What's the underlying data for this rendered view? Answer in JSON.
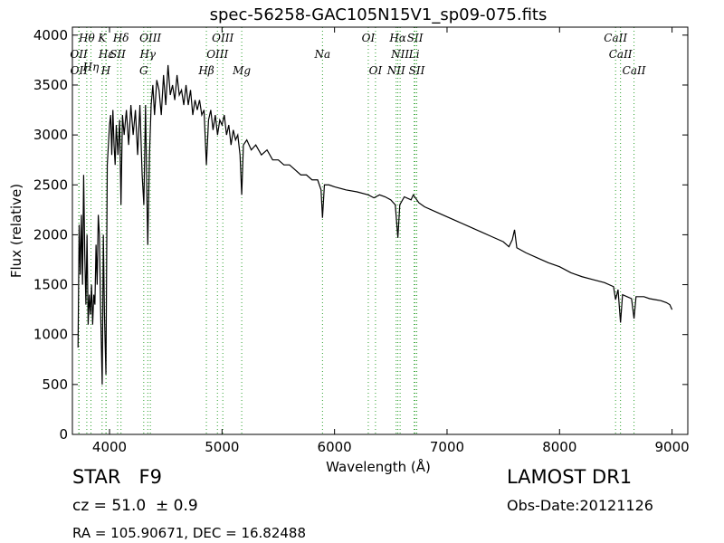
{
  "chart_data": {
    "type": "line",
    "title": "spec-56258-GAC105N15V1_sp09-075.fits",
    "x_label": "Wavelength (Å)",
    "y_label": "Flux (relative)",
    "annotations": {
      "class": "STAR   F9",
      "redshift": "cz = 51.0  ± 0.9",
      "coords": "RA = 105.90671, DEC = 16.82488",
      "survey": "LAMOST DR1",
      "obs_date": "Obs-Date:20121126"
    },
    "color": "#000000",
    "line_color": "#2ca02c",
    "xlim": [
      3670,
      9140
    ],
    "ylim": [
      0,
      4080
    ],
    "xticks": [
      4000,
      5000,
      6000,
      7000,
      8000,
      9000
    ],
    "yticks": [
      0,
      500,
      1000,
      1500,
      2000,
      2500,
      3000,
      3500,
      4000
    ],
    "x": [
      3720,
      3730,
      3740,
      3750,
      3760,
      3770,
      3780,
      3790,
      3800,
      3810,
      3820,
      3830,
      3840,
      3850,
      3860,
      3870,
      3880,
      3890,
      3900,
      3910,
      3920,
      3935,
      3945,
      3955,
      3968,
      3980,
      3990,
      4000,
      4010,
      4020,
      4030,
      4040,
      4050,
      4060,
      4075,
      4090,
      4102,
      4115,
      4130,
      4150,
      4170,
      4190,
      4210,
      4230,
      4250,
      4270,
      4290,
      4305,
      4320,
      4335,
      4340,
      4355,
      4370,
      4385,
      4400,
      4420,
      4440,
      4460,
      4480,
      4500,
      4520,
      4540,
      4560,
      4580,
      4600,
      4620,
      4640,
      4660,
      4680,
      4700,
      4720,
      4740,
      4760,
      4780,
      4800,
      4820,
      4840,
      4861,
      4880,
      4900,
      4920,
      4940,
      4960,
      4980,
      5000,
      5020,
      5040,
      5060,
      5080,
      5100,
      5120,
      5140,
      5160,
      5175,
      5190,
      5220,
      5260,
      5300,
      5350,
      5400,
      5450,
      5500,
      5550,
      5600,
      5650,
      5700,
      5750,
      5800,
      5850,
      5880,
      5893,
      5910,
      5950,
      6000,
      6100,
      6200,
      6300,
      6350,
      6400,
      6450,
      6500,
      6540,
      6563,
      6580,
      6620,
      6680,
      6700,
      6750,
      6800,
      6900,
      7000,
      7100,
      7200,
      7300,
      7400,
      7500,
      7550,
      7580,
      7600,
      7620,
      7700,
      7800,
      7900,
      8000,
      8100,
      8200,
      8300,
      8400,
      8480,
      8498,
      8520,
      8542,
      8560,
      8600,
      8640,
      8662,
      8680,
      8750,
      8800,
      8850,
      8900,
      8950,
      8980,
      9000
    ],
    "values": [
      870,
      2100,
      1600,
      2200,
      1500,
      2600,
      1800,
      1300,
      2000,
      1100,
      1400,
      1200,
      1500,
      1100,
      1400,
      1300,
      1900,
      1500,
      2200,
      2000,
      1300,
      500,
      2000,
      1200,
      600,
      2700,
      2900,
      3100,
      3200,
      2800,
      3250,
      2900,
      2700,
      3100,
      2800,
      3150,
      2300,
      3200,
      3000,
      3250,
      2900,
      3300,
      3000,
      3250,
      2800,
      3300,
      2600,
      2300,
      3300,
      2200,
      1900,
      2800,
      3300,
      3500,
      3200,
      3550,
      3450,
      3200,
      3600,
      3300,
      3700,
      3400,
      3500,
      3350,
      3600,
      3400,
      3450,
      3300,
      3500,
      3300,
      3450,
      3200,
      3350,
      3250,
      3350,
      3200,
      3250,
      2700,
      3150,
      3250,
      3050,
      3200,
      3000,
      3150,
      3100,
      3200,
      3000,
      3100,
      2900,
      3050,
      2950,
      3000,
      2800,
      2400,
      2900,
      2950,
      2850,
      2900,
      2800,
      2850,
      2750,
      2750,
      2700,
      2700,
      2650,
      2600,
      2600,
      2550,
      2550,
      2450,
      2170,
      2500,
      2500,
      2480,
      2450,
      2430,
      2400,
      2370,
      2400,
      2380,
      2350,
      2300,
      1970,
      2300,
      2380,
      2350,
      2400,
      2320,
      2280,
      2230,
      2180,
      2130,
      2080,
      2030,
      1980,
      1930,
      1880,
      1950,
      2050,
      1870,
      1820,
      1770,
      1720,
      1680,
      1620,
      1580,
      1550,
      1520,
      1480,
      1350,
      1450,
      1120,
      1400,
      1380,
      1360,
      1160,
      1380,
      1380,
      1360,
      1350,
      1340,
      1320,
      1300,
      1250
    ],
    "lines": [
      {
        "label": "OII",
        "x": 3727
      },
      {
        "label": "OII",
        "x": 3729
      },
      {
        "label": "Hθ",
        "x": 3798
      },
      {
        "label": "Hη",
        "x": 3835
      },
      {
        "label": "Hε",
        "x": 3970
      },
      {
        "label": "K",
        "x": 3934
      },
      {
        "label": "H",
        "x": 3968
      },
      {
        "label": "SII",
        "x": 4072
      },
      {
        "label": "Hδ",
        "x": 4102
      },
      {
        "label": "G",
        "x": 4304
      },
      {
        "label": "Hγ",
        "x": 4340
      },
      {
        "label": "OIII",
        "x": 4363
      },
      {
        "label": "Hβ",
        "x": 4861
      },
      {
        "label": "OIII",
        "x": 4959
      },
      {
        "label": "OIII",
        "x": 5007
      },
      {
        "label": "Mg",
        "x": 5175
      },
      {
        "label": "Na",
        "x": 5893
      },
      {
        "label": "OI",
        "x": 6300
      },
      {
        "label": "OI",
        "x": 6364
      },
      {
        "label": "NII",
        "x": 6548
      },
      {
        "label": "Hα",
        "x": 6563
      },
      {
        "label": "NII",
        "x": 6583
      },
      {
        "label": "Li",
        "x": 6708
      },
      {
        "label": "SII",
        "x": 6716
      },
      {
        "label": "SII",
        "x": 6731
      },
      {
        "label": "CaII",
        "x": 8498
      },
      {
        "label": "CaII",
        "x": 8542
      },
      {
        "label": "CaII",
        "x": 8662
      }
    ]
  }
}
